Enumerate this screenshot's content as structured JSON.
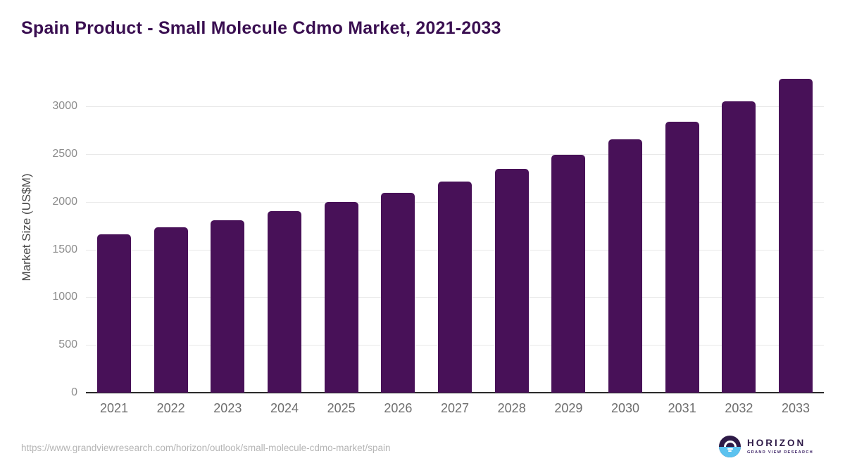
{
  "title": "Spain Product - Small Molecule Cdmo Market, 2021-2033",
  "chart_data": {
    "type": "bar",
    "title": "Spain Product - Small Molecule Cdmo Market, 2021-2033",
    "categories": [
      "2021",
      "2022",
      "2023",
      "2024",
      "2025",
      "2026",
      "2027",
      "2028",
      "2029",
      "2030",
      "2031",
      "2032",
      "2033"
    ],
    "values": [
      1660,
      1735,
      1810,
      1900,
      1995,
      2095,
      2210,
      2345,
      2495,
      2655,
      2840,
      3055,
      3290
    ],
    "xlabel": "",
    "ylabel": "Market Size (US$M)",
    "ylim": [
      0,
      3400
    ],
    "yticks": [
      0,
      500,
      1000,
      1500,
      2000,
      2500,
      3000
    ],
    "grid": "horizontal",
    "legend": "none",
    "bar_color": "#481158"
  },
  "footer": {
    "source_url": "https://www.grandviewresearch.com/horizon/outlook/small-molecule-cdmo-market/spain",
    "logo": {
      "brand": "HORIZON",
      "tagline": "GRAND VIEW RESEARCH"
    }
  },
  "colors": {
    "title_text": "#3a0f51",
    "bar": "#481158",
    "y_tick_text": "#8c8c8c",
    "x_tick_text": "#6e6e6e",
    "gridline": "#e9e9e9",
    "axis_line": "#2b2b2b",
    "url_text": "#b5b5b5",
    "logo_purple": "#2e1a47",
    "logo_blue": "#5bc2ef"
  }
}
